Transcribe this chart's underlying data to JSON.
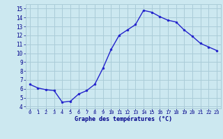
{
  "hours": [
    0,
    1,
    2,
    3,
    4,
    5,
    6,
    7,
    8,
    9,
    10,
    11,
    12,
    13,
    14,
    15,
    16,
    17,
    18,
    19,
    20,
    21,
    22,
    23
  ],
  "temps": [
    6.5,
    6.1,
    5.9,
    5.8,
    4.5,
    4.6,
    5.4,
    5.8,
    6.5,
    8.3,
    10.4,
    12.0,
    12.6,
    13.2,
    14.8,
    14.6,
    14.1,
    13.7,
    13.5,
    12.6,
    11.9,
    11.1,
    10.7,
    10.3
  ],
  "line_color": "#2222cc",
  "marker_color": "#2222cc",
  "bg_color": "#cce8f0",
  "grid_color": "#aaccd8",
  "xlabel": "Graphe des températures (°C)",
  "xlabel_color": "#00008b",
  "tick_color": "#00008b",
  "xlim": [
    -0.5,
    23.5
  ],
  "ylim": [
    3.8,
    15.5
  ],
  "yticks": [
    4,
    5,
    6,
    7,
    8,
    9,
    10,
    11,
    12,
    13,
    14,
    15
  ],
  "xticks": [
    0,
    1,
    2,
    3,
    4,
    5,
    6,
    7,
    8,
    9,
    10,
    11,
    12,
    13,
    14,
    15,
    16,
    17,
    18,
    19,
    20,
    21,
    22,
    23
  ],
  "bottom_bar_color": "#000080"
}
